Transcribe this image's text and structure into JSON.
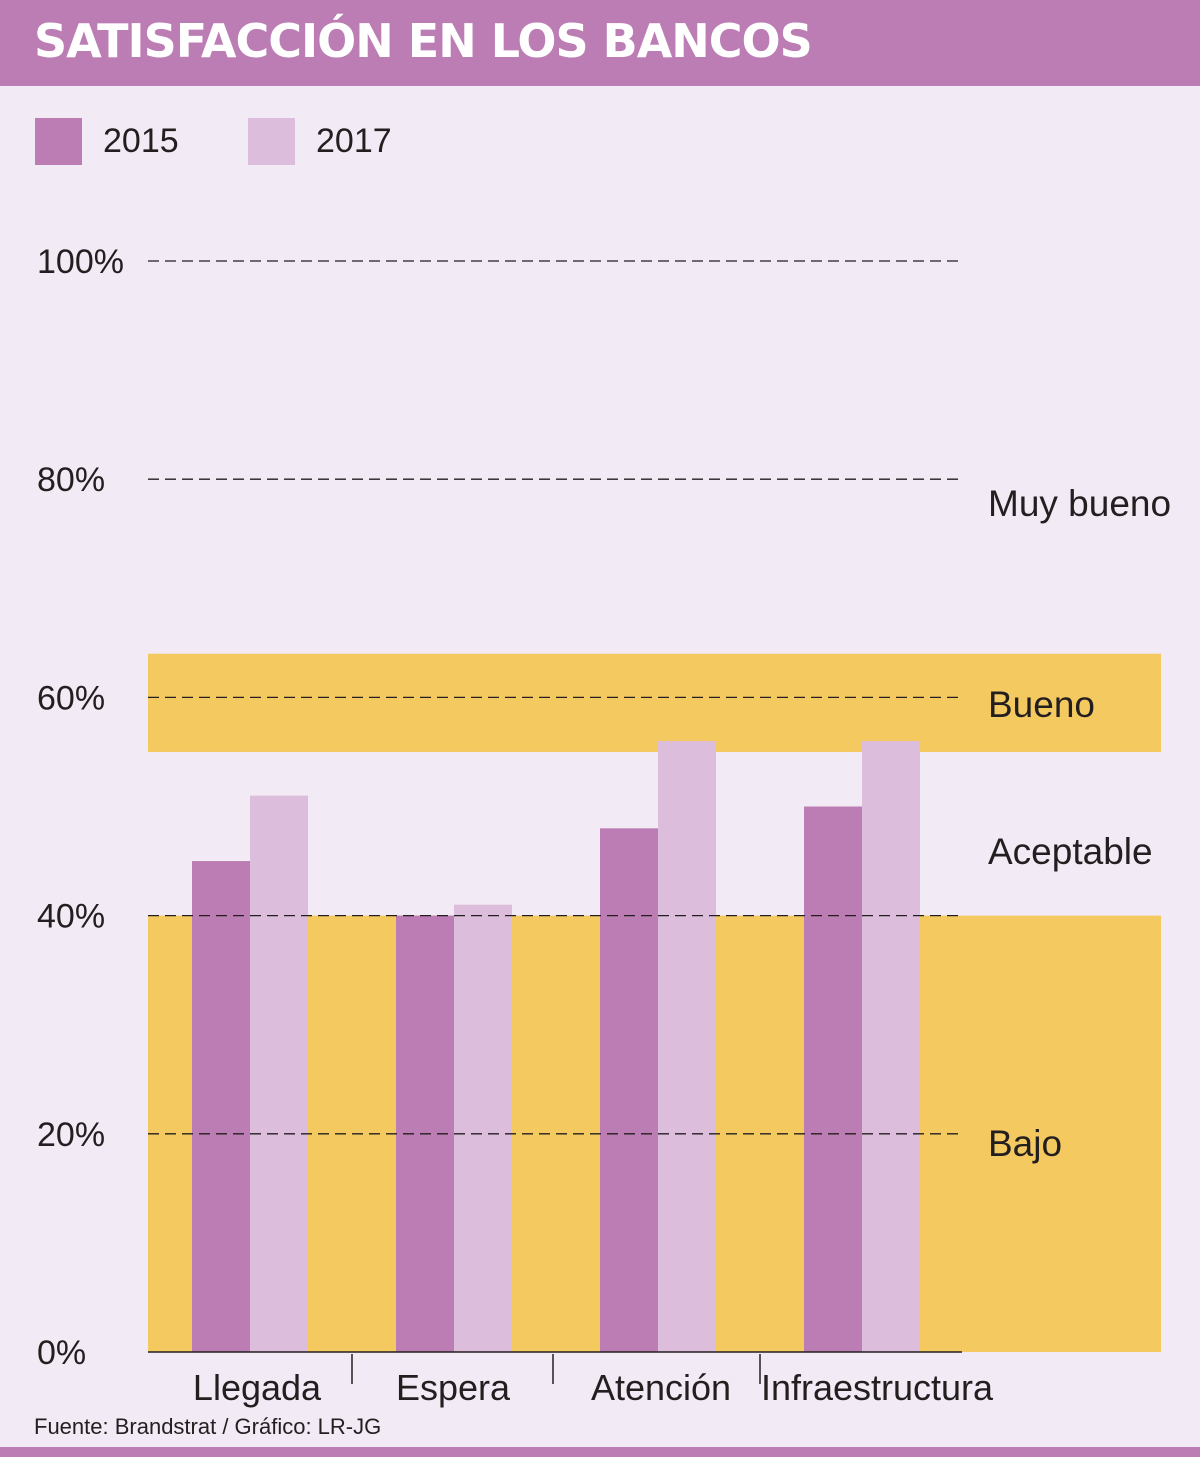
{
  "chart_data": {
    "type": "bar",
    "title": "SATISFACCIÓN EN LOS BANCOS",
    "categories": [
      "Llegada",
      "Espera",
      "Atención",
      "Infraestructura"
    ],
    "series": [
      {
        "name": "2015",
        "color": "#bc7db4",
        "values": [
          45,
          40,
          48,
          50
        ]
      },
      {
        "name": "2017",
        "color": "#dcbedc",
        "values": [
          51,
          41,
          56,
          56
        ]
      }
    ],
    "ylim": [
      0,
      100
    ],
    "yticks": [
      {
        "value": 0,
        "label": "0%"
      },
      {
        "value": 20,
        "label": "20%"
      },
      {
        "value": 40,
        "label": "40%"
      },
      {
        "value": 60,
        "label": "60%"
      },
      {
        "value": 80,
        "label": "80%"
      },
      {
        "value": 100,
        "label": "100%"
      }
    ],
    "gridlines": "dashed",
    "bands": [
      {
        "label": "Bajo",
        "from": 0,
        "to": 40,
        "color": "#f4ca60"
      },
      {
        "label": "Aceptable",
        "from": 40,
        "to": 55,
        "color": "#f2eaf4"
      },
      {
        "label": "Bueno",
        "from": 55,
        "to": 64,
        "color": "#f4ca60"
      },
      {
        "label": "Muy bueno",
        "from": 64,
        "to": 100,
        "color": "#f2eaf4"
      }
    ],
    "legend_position": "top-left"
  },
  "footer": {
    "source": "Fuente:  Brandstrat / Gráfico: LR-JG"
  },
  "colors": {
    "header": "#bc7db4",
    "background": "#f2eaf4",
    "band": "#f4ca60"
  }
}
